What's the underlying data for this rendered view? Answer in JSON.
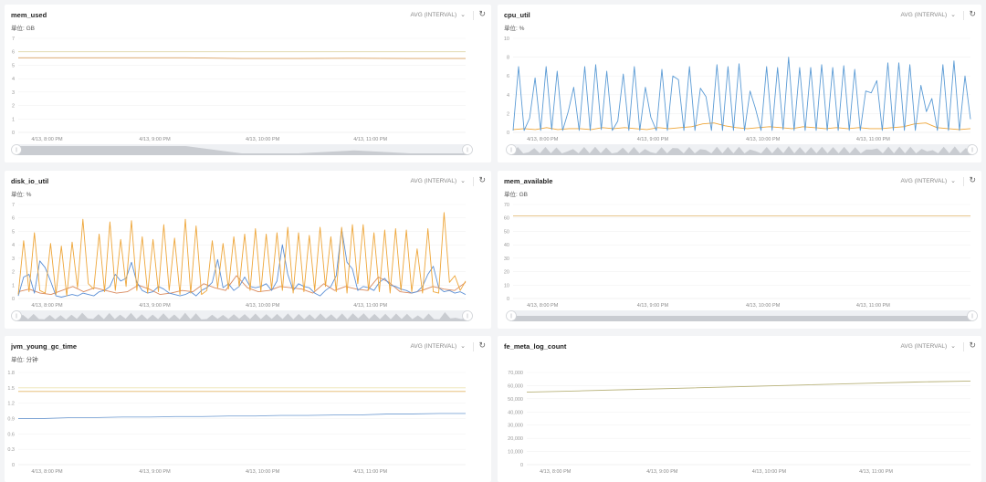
{
  "colors": {
    "blue": "#5b9bd5",
    "orange": "#eea63a",
    "brown": "#d98a5e",
    "yellow": "#e8d9a0",
    "olive": "#b8b27a",
    "gray": "#c4c7cc"
  },
  "x_range": [
    "4/13 7:44 PM",
    "4/13 11:53 PM"
  ],
  "x_ticks": [
    "4/13, 8:00 PM",
    "4/13, 9:00 PM",
    "4/13, 10:00 PM",
    "4/13, 11:00 PM"
  ],
  "chart_data": [
    {
      "id": "mem_used",
      "type": "line",
      "title": "mem_used",
      "unit": "单位: GB",
      "agg": "AVG (INTERVAL)",
      "ylim": [
        0,
        7
      ],
      "yticks": [
        "0",
        "1",
        "2",
        "3",
        "4",
        "5",
        "6",
        "7"
      ],
      "slider": true,
      "series": [
        {
          "color": "#e0d6a8",
          "values": [
            6.0,
            6.0,
            6.0,
            6.0,
            6.0,
            6.0,
            6.0,
            6.0,
            6.0
          ]
        },
        {
          "color": "#d9a060",
          "values": [
            5.55,
            5.55,
            5.55,
            5.55,
            5.5,
            5.5,
            5.52,
            5.5,
            5.5
          ]
        }
      ]
    },
    {
      "id": "cpu_util",
      "type": "line",
      "title": "cpu_util",
      "unit": "单位: %",
      "agg": "AVG (INTERVAL)",
      "ylim": [
        0,
        10
      ],
      "yticks": [
        "0",
        "2",
        "4",
        "6",
        "8",
        "10"
      ],
      "slider": true,
      "series": [
        {
          "color": "#eea63a",
          "values": [
            0.3,
            0.4,
            0.3,
            0.5,
            0.3,
            0.4,
            0.4,
            0.3,
            0.5,
            0.4,
            0.5,
            0.4,
            0.3,
            0.5,
            0.4,
            0.5,
            0.6,
            0.9,
            1.0,
            0.7,
            0.5,
            0.4,
            0.5,
            0.6,
            0.5,
            0.4,
            0.6,
            0.5,
            0.4,
            0.5,
            0.4,
            0.5,
            0.4,
            0.4,
            0.5,
            0.6,
            0.9,
            1.0,
            0.5,
            0.4,
            0.3,
            0.4
          ]
        },
        {
          "color": "#5b9bd5",
          "values": [
            0.2,
            7,
            0.2,
            1.5,
            5.8,
            0.2,
            7,
            0.3,
            6.5,
            0.2,
            2.2,
            4.8,
            0.2,
            7,
            0.2,
            7.2,
            0.3,
            6.5,
            0.2,
            1.2,
            6.2,
            0.2,
            7,
            0.2,
            4.8,
            1.6,
            0.2,
            6.7,
            0.2,
            6,
            5.6,
            0.2,
            7,
            0.2,
            4.7,
            3.8,
            0.2,
            7.2,
            0.2,
            7,
            0.2,
            7.3,
            0.2,
            4.4,
            2.5,
            0.2,
            7,
            0.2,
            6.9,
            0.3,
            8,
            0.2,
            6.9,
            0.2,
            6.9,
            0.2,
            7.2,
            0.2,
            6.9,
            0.2,
            7.1,
            0.2,
            6.7,
            0.2,
            4.4,
            4.2,
            5.5,
            0.2,
            7.4,
            0.2,
            7.4,
            0.2,
            7.2,
            0.2,
            5,
            2.2,
            3.6,
            0.2,
            7.2,
            0.2,
            7.6,
            0.2,
            6,
            1.4
          ]
        }
      ]
    },
    {
      "id": "disk_io_util",
      "type": "line",
      "title": "disk_io_util",
      "unit": "单位: %",
      "agg": "AVG (INTERVAL)",
      "ylim": [
        0,
        7
      ],
      "yticks": [
        "0",
        "1",
        "2",
        "3",
        "4",
        "5",
        "6",
        "7"
      ],
      "slider": true,
      "series": [
        {
          "color": "#d98a5e",
          "values": [
            0.5,
            0.7,
            0.4,
            0.3,
            0.6,
            0.9,
            0.5,
            0.8,
            0.6,
            0.4,
            0.5,
            1.0,
            0.7,
            0.3,
            0.4,
            0.6,
            0.5,
            1.1,
            0.8,
            0.6,
            1.7,
            0.8,
            0.5,
            0.6,
            0.9,
            0.8,
            0.7,
            0.4,
            1.1,
            0.6,
            0.9,
            0.7,
            0.6,
            1.6,
            1.2,
            0.5,
            0.4,
            0.6,
            0.9,
            0.7,
            0.6,
            1.2
          ]
        },
        {
          "color": "#5b8fd5",
          "values": [
            0.2,
            1.6,
            1.8,
            0.4,
            2.8,
            2.3,
            1.3,
            0.2,
            0.1,
            0.2,
            0.3,
            0.2,
            0.4,
            0.3,
            0.2,
            0.5,
            0.6,
            0.9,
            1.8,
            1.3,
            1.5,
            2.7,
            1.2,
            0.6,
            0.4,
            0.5,
            0.9,
            0.7,
            0.4,
            0.3,
            0.2,
            0.3,
            0.5,
            0.2,
            0.6,
            0.8,
            1.2,
            2.9,
            0.8,
            1.1,
            0.6,
            0.9,
            1.6,
            0.9,
            0.8,
            0.9,
            1.1,
            0.6,
            1.3,
            4,
            1.8,
            0.6,
            1.1,
            0.9,
            0.8,
            0.4,
            0.2,
            0.6,
            0.9,
            1.7,
            5.2,
            2.7,
            2.2,
            0.6,
            0.9,
            0.8,
            0.6,
            1.2,
            1.5,
            1.0,
            0.9,
            0.7,
            0.6,
            0.4,
            0.5,
            0.9,
            1.8,
            2.4,
            0.8,
            0.5,
            0.6,
            0.4,
            0.5,
            0.3
          ]
        },
        {
          "color": "#eea63a",
          "values": [
            0.3,
            4.3,
            0.5,
            4.9,
            0.6,
            0.4,
            4.1,
            0.3,
            3.9,
            0.2,
            4.2,
            0.8,
            5.9,
            1.1,
            0.7,
            4.8,
            0.5,
            5.7,
            0.6,
            4.4,
            0.9,
            5.8,
            0.6,
            4.6,
            0.4,
            4.4,
            0.5,
            5.5,
            0.6,
            4.5,
            0.3,
            5.9,
            0.4,
            5.4,
            0.3,
            0.6,
            4.3,
            0.8,
            4.1,
            0.7,
            4.6,
            0.9,
            4.8,
            0.6,
            5.2,
            0.5,
            4.8,
            0.7,
            4.9,
            0.6,
            5.3,
            0.4,
            4.9,
            0.5,
            4.7,
            0.6,
            5.3,
            0.9,
            4.6,
            0.5,
            5.3,
            0.4,
            5.5,
            1.1,
            5.5,
            0.6,
            4.9,
            0.5,
            5.1,
            0.4,
            5.2,
            0.6,
            5.1,
            0.5,
            3.7,
            0.4,
            5.2,
            0.5,
            0.4,
            6.4,
            1.2,
            1.7,
            0.6,
            1.3
          ]
        }
      ]
    },
    {
      "id": "mem_available",
      "type": "line",
      "title": "mem_available",
      "unit": "单位: GB",
      "agg": "AVG (INTERVAL)",
      "ylim": [
        0,
        70
      ],
      "yticks": [
        "0",
        "10",
        "20",
        "30",
        "40",
        "50",
        "60",
        "70"
      ],
      "slider": true,
      "series": [
        {
          "color": "#e6c48a",
          "values": [
            61.5,
            61.5,
            61.5,
            61.5,
            61.5,
            61.5,
            61.5,
            61.5
          ]
        }
      ]
    },
    {
      "id": "jvm_young_gc_time",
      "type": "line",
      "title": "jvm_young_gc_time",
      "unit": "单位: 分钟",
      "agg": "AVG (INTERVAL)",
      "ylim": [
        0,
        1.8
      ],
      "yticks": [
        "0",
        "0.3",
        "0.6",
        "0.9",
        "1.2",
        "1.5",
        "1.8"
      ],
      "slider": false,
      "series": [
        {
          "color": "#ede3b5",
          "values": [
            1.5,
            1.5,
            1.5,
            1.5,
            1.5,
            1.5,
            1.5,
            1.5
          ]
        },
        {
          "color": "#e3b76a",
          "values": [
            1.43,
            1.43,
            1.43,
            1.43,
            1.43,
            1.43,
            1.43,
            1.43
          ]
        },
        {
          "color": "#7fa6d6",
          "values": [
            0.9,
            0.9,
            0.92,
            0.92,
            0.93,
            0.93,
            0.94,
            0.94,
            0.95,
            0.95,
            0.96,
            0.96,
            0.97,
            0.97,
            0.99,
            0.99,
            1.0,
            1.0
          ]
        }
      ]
    },
    {
      "id": "fe_meta_log_count",
      "type": "line",
      "title": "fe_meta_log_count",
      "unit": "",
      "agg": "AVG (INTERVAL)",
      "ylim": [
        0,
        70000
      ],
      "yticks": [
        "0",
        "10,000",
        "20,000",
        "30,000",
        "40,000",
        "50,000",
        "60,000",
        "70,000"
      ],
      "slider": false,
      "series": [
        {
          "color": "#b8b27a",
          "values": [
            55000,
            56100,
            57200,
            58300,
            59400,
            60500,
            61600,
            62700,
            63500
          ]
        }
      ]
    }
  ]
}
